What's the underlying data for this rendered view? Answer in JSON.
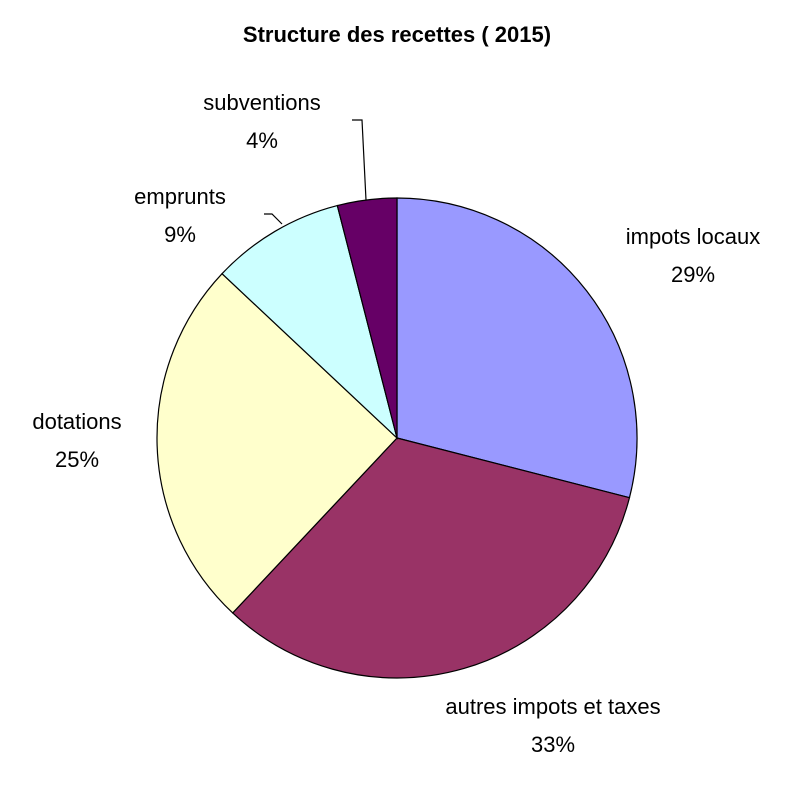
{
  "chart_data": {
    "type": "pie",
    "title": "Structure des recettes ( 2015)",
    "categories": [
      "impots locaux",
      "autres impots et taxes",
      "dotations",
      "emprunts",
      "subventions"
    ],
    "values": [
      29,
      33,
      25,
      9,
      4
    ],
    "value_labels": [
      "29%",
      "33%",
      "25%",
      "9%",
      "4%"
    ],
    "colors": [
      "#9999ff",
      "#993366",
      "#ffffcc",
      "#ccffff",
      "#660066"
    ]
  }
}
